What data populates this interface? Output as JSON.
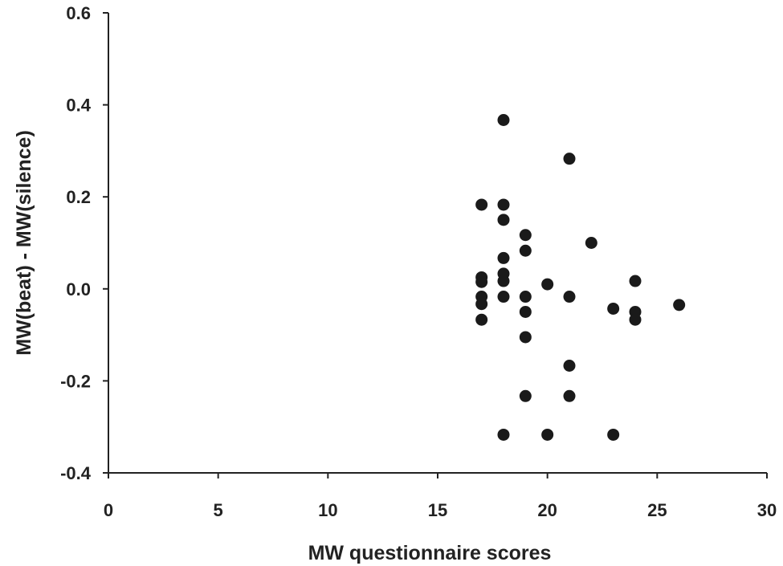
{
  "chart_data": {
    "type": "scatter",
    "title": "",
    "xlabel": "MW questionnaire scores",
    "ylabel": "MW(beat) - MW(silence)",
    "xlim": [
      0,
      30
    ],
    "ylim": [
      -0.4,
      0.6
    ],
    "xticks": [
      0,
      5,
      10,
      15,
      20,
      25,
      30
    ],
    "xtick_labels": [
      "0",
      "5",
      "10",
      "15",
      "20",
      "25",
      "30"
    ],
    "yticks": [
      -0.4,
      -0.2,
      0.0,
      0.2,
      0.4,
      0.6
    ],
    "ytick_labels": [
      "-0.4",
      "-0.2",
      "0.0",
      "0.2",
      "0.4",
      "0.6"
    ],
    "grid": false,
    "legend": "none",
    "marker_color": "#1a1a1a",
    "points": [
      {
        "x": 17,
        "y": 0.183
      },
      {
        "x": 17,
        "y": 0.025
      },
      {
        "x": 17,
        "y": 0.015
      },
      {
        "x": 17,
        "y": -0.017
      },
      {
        "x": 17,
        "y": -0.033
      },
      {
        "x": 17,
        "y": -0.067
      },
      {
        "x": 18,
        "y": 0.367
      },
      {
        "x": 18,
        "y": 0.183
      },
      {
        "x": 18,
        "y": 0.15
      },
      {
        "x": 18,
        "y": 0.067
      },
      {
        "x": 18,
        "y": 0.033
      },
      {
        "x": 18,
        "y": 0.017
      },
      {
        "x": 18,
        "y": -0.017
      },
      {
        "x": 18,
        "y": -0.317
      },
      {
        "x": 19,
        "y": 0.117
      },
      {
        "x": 19,
        "y": 0.083
      },
      {
        "x": 19,
        "y": -0.017
      },
      {
        "x": 19,
        "y": -0.05
      },
      {
        "x": 19,
        "y": -0.105
      },
      {
        "x": 19,
        "y": -0.233
      },
      {
        "x": 20,
        "y": 0.01
      },
      {
        "x": 20,
        "y": -0.317
      },
      {
        "x": 21,
        "y": 0.283
      },
      {
        "x": 21,
        "y": -0.017
      },
      {
        "x": 21,
        "y": -0.167
      },
      {
        "x": 21,
        "y": -0.233
      },
      {
        "x": 22,
        "y": 0.1
      },
      {
        "x": 23,
        "y": -0.043
      },
      {
        "x": 23,
        "y": -0.317
      },
      {
        "x": 24,
        "y": 0.017
      },
      {
        "x": 24,
        "y": -0.05
      },
      {
        "x": 24,
        "y": -0.067
      },
      {
        "x": 26,
        "y": -0.035
      }
    ]
  }
}
